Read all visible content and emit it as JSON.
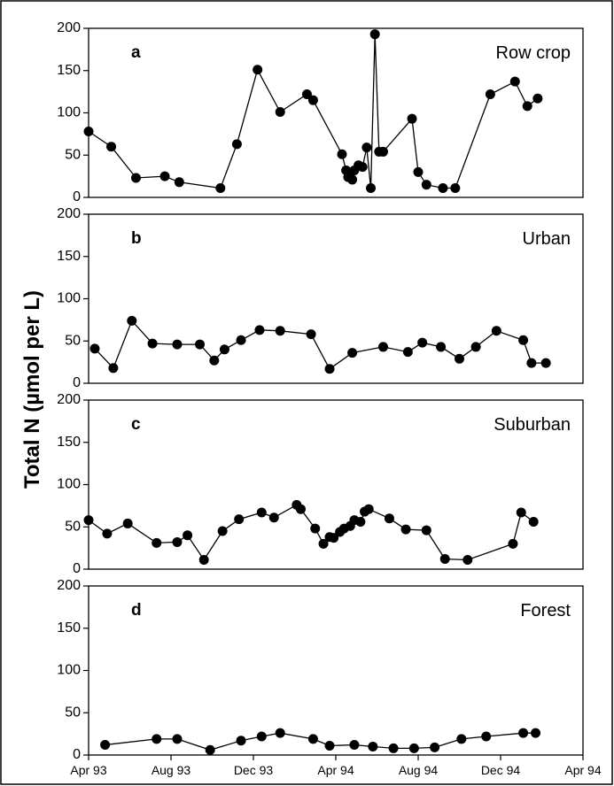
{
  "chart_data": {
    "type": "line",
    "ylabel": "Total N (µmol per L)",
    "xticks": [
      "Apr 93",
      "Aug 93",
      "Dec 93",
      "Apr 94",
      "Aug 94",
      "Dec 94",
      "Apr 94"
    ],
    "xrange_months": [
      0,
      24
    ],
    "ylim": [
      0,
      200
    ],
    "yticks": [
      0,
      50,
      100,
      150,
      200
    ],
    "grid": false,
    "panels": [
      {
        "letter": "a",
        "title": "Row crop",
        "x": [
          0.0,
          1.1,
          2.3,
          3.7,
          4.4,
          6.4,
          7.2,
          8.2,
          9.3,
          10.6,
          10.9,
          12.3,
          12.5,
          12.6,
          12.8,
          12.9,
          13.1,
          13.3,
          13.5,
          13.7,
          13.9,
          14.1,
          14.3,
          15.7,
          16.0,
          16.4,
          17.2,
          17.8,
          19.5,
          20.7,
          21.3,
          21.8
        ],
        "y": [
          78,
          60,
          23,
          25,
          18,
          11,
          63,
          151,
          101,
          122,
          115,
          51,
          32,
          24,
          21,
          32,
          38,
          36,
          59,
          11,
          193,
          54,
          54,
          93,
          30,
          15,
          11,
          11,
          122,
          137,
          108,
          117
        ]
      },
      {
        "letter": "b",
        "title": "Urban",
        "x": [
          0.3,
          1.2,
          2.1,
          3.1,
          4.3,
          5.4,
          6.1,
          6.6,
          7.4,
          8.3,
          9.3,
          10.8,
          11.7,
          12.8,
          14.3,
          15.5,
          16.2,
          17.1,
          18.0,
          18.8,
          19.8,
          21.1,
          21.5,
          22.2
        ],
        "y": [
          41,
          18,
          74,
          47,
          46,
          46,
          27,
          40,
          51,
          63,
          62,
          58,
          17,
          36,
          43,
          37,
          48,
          43,
          29,
          43,
          62,
          51,
          24,
          24
        ]
      },
      {
        "letter": "c",
        "title": "Suburban",
        "x": [
          0.0,
          0.9,
          1.9,
          3.3,
          4.3,
          4.8,
          5.6,
          6.5,
          7.3,
          8.4,
          9.0,
          10.1,
          10.3,
          11.0,
          11.4,
          11.7,
          11.9,
          12.2,
          12.4,
          12.7,
          12.9,
          13.2,
          13.4,
          13.6,
          14.6,
          15.4,
          16.4,
          17.3,
          18.4,
          20.6,
          21.0,
          21.6
        ],
        "y": [
          58,
          42,
          54,
          31,
          32,
          40,
          11,
          45,
          59,
          67,
          61,
          76,
          71,
          48,
          30,
          38,
          37,
          44,
          48,
          51,
          58,
          56,
          68,
          71,
          60,
          47,
          46,
          12,
          11,
          30,
          67,
          56
        ]
      },
      {
        "letter": "d",
        "title": "Forest",
        "x": [
          0.8,
          3.3,
          4.3,
          5.9,
          7.4,
          8.4,
          9.3,
          10.9,
          11.7,
          12.9,
          13.8,
          14.8,
          15.8,
          16.8,
          18.1,
          19.3,
          21.1,
          21.7
        ],
        "y": [
          12,
          19,
          19,
          6,
          17,
          22,
          26,
          19,
          11,
          12,
          10,
          8,
          8,
          9,
          19,
          22,
          26,
          26
        ]
      }
    ]
  }
}
